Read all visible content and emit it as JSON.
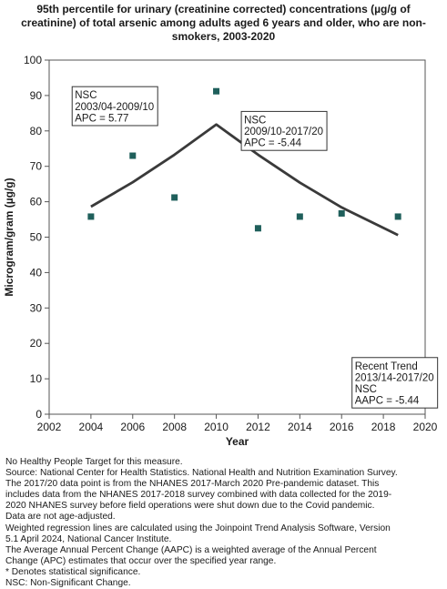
{
  "title_lines": [
    "95th percentile for urinary (creatinine corrected) concentrations (µg/g of",
    "creatinine) of total arsenic among adults aged 6 years and older, who are non-",
    "smokers, 2003-2020"
  ],
  "chart_data": {
    "type": "scatter",
    "title": "95th percentile for urinary (creatinine corrected) concentrations (µg/g of creatinine) of total arsenic among adults aged 6 years and older, who are non-smokers, 2003-2020",
    "xlabel": "Year",
    "ylabel": "Microgram/gram (µg/g)",
    "xlim": [
      2002,
      2020
    ],
    "ylim": [
      0,
      100
    ],
    "xticks": [
      "2002",
      "2004",
      "2006",
      "2008",
      "2010",
      "2012",
      "2014",
      "2016",
      "2018",
      "2020"
    ],
    "yticks": [
      "0",
      "10",
      "20",
      "30",
      "40",
      "50",
      "60",
      "70",
      "80",
      "90",
      "100"
    ],
    "grid": false,
    "points": {
      "x": [
        2004,
        2006,
        2008,
        2010,
        2012,
        2014,
        2016,
        2018.7
      ],
      "y": [
        55.8,
        73.0,
        61.2,
        91.2,
        52.5,
        55.8,
        56.7,
        55.8
      ],
      "color": "#1f5f5b"
    },
    "trend_line": {
      "x": [
        2004,
        2006,
        2008,
        2010,
        2012,
        2014,
        2016,
        2018.7
      ],
      "y": [
        58.6,
        65.5,
        73.3,
        81.8,
        73.3,
        65.4,
        58.4,
        50.6
      ],
      "color": "#3a3a3a"
    },
    "annotations": [
      {
        "lines": [
          "NSC",
          "2003/04-2009/10",
          "APC =  5.77"
        ],
        "x": 2003.1,
        "y": 92.5
      },
      {
        "lines": [
          "NSC",
          "2009/10-2017/20",
          "APC = -5.44"
        ],
        "x": 2011.2,
        "y": 85.5
      },
      {
        "lines": [
          "Recent Trend",
          "2013/14-2017/20",
          "NSC",
          "AAPC = -5.44"
        ],
        "x": 2016.5,
        "y": 16.0
      }
    ]
  },
  "notes": [
    "No Healthy People Target for this measure.",
    "Source: National Center for Health Statistics. National Health and Nutrition Examination Survey.",
    "The 2017/20 data point is from the NHANES 2017-March 2020 Pre-pandemic dataset. This",
    "includes data from the NHANES 2017-2018 survey combined with data collected for the 2019-",
    "2020 NHANES survey before field operations were shut down due to the Covid pandemic.",
    "Data are not age-adjusted.",
    "Weighted regression lines are calculated using the Joinpoint Trend Analysis Software, Version",
    "5.1 April 2024, National Cancer Institute.",
    "The Average Annual Percent Change (AAPC) is a weighted average of the Annual Percent",
    "Change (APC) estimates that occur over the specified year range.",
    "* Denotes statistical significance.",
    "NSC: Non-Significant Change."
  ]
}
